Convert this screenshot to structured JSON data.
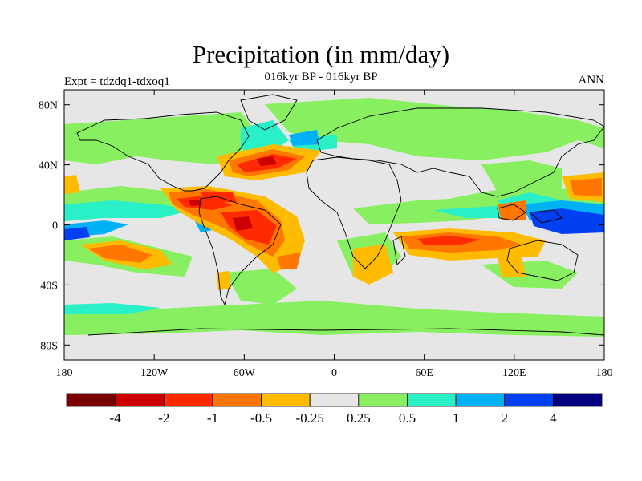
{
  "title": "Precipitation (in mm/day)",
  "subtitle": "016kyr BP - 016kyr BP",
  "left_label": "Expt = tdzdq1-tdxoq1",
  "right_label": "ANN",
  "y_ticks": [
    {
      "value": 80,
      "label": "80N"
    },
    {
      "value": 40,
      "label": "40N"
    },
    {
      "value": 0,
      "label": "0"
    },
    {
      "value": -40,
      "label": "40S"
    },
    {
      "value": -80,
      "label": "80S"
    }
  ],
  "x_ticks": [
    {
      "value": -180,
      "label": "180"
    },
    {
      "value": -120,
      "label": "120W"
    },
    {
      "value": -60,
      "label": "60W"
    },
    {
      "value": 0,
      "label": "0"
    },
    {
      "value": 60,
      "label": "60E"
    },
    {
      "value": 120,
      "label": "120E"
    },
    {
      "value": 180,
      "label": "180"
    }
  ],
  "colorbar": {
    "colors": [
      "#7a0000",
      "#cc0000",
      "#ff2a00",
      "#ff7700",
      "#ffbb00",
      "#e6e6e6",
      "#88f060",
      "#2af0c8",
      "#00b2f5",
      "#0040f0",
      "#000080"
    ],
    "labels": [
      "-4",
      "-2",
      "-1",
      "-0.5",
      "-0.25",
      "0.25",
      "0.5",
      "1",
      "2",
      "4"
    ]
  },
  "colors": {
    "ocean_background": "#e6e6e6",
    "positive_weak": "#88f060",
    "positive_mid": "#2af0c8",
    "positive_strong": "#00b2f5",
    "positive_very_strong": "#0040f0",
    "negative_weak": "#ffbb00",
    "negative_mid": "#ff7700",
    "negative_strong": "#ff2a00",
    "negative_very_strong": "#cc0000"
  }
}
